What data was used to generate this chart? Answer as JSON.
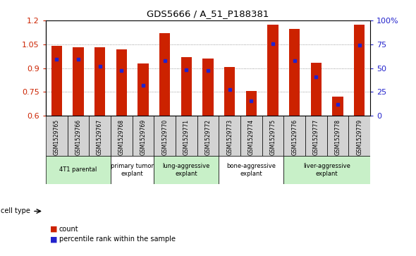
{
  "title": "GDS5666 / A_51_P188381",
  "samples": [
    "GSM1529765",
    "GSM1529766",
    "GSM1529767",
    "GSM1529768",
    "GSM1529769",
    "GSM1529770",
    "GSM1529771",
    "GSM1529772",
    "GSM1529773",
    "GSM1529774",
    "GSM1529775",
    "GSM1529776",
    "GSM1529777",
    "GSM1529778",
    "GSM1529779"
  ],
  "counts": [
    1.04,
    1.03,
    1.03,
    1.02,
    0.93,
    1.12,
    0.97,
    0.96,
    0.905,
    0.755,
    1.175,
    1.145,
    0.935,
    0.72,
    1.175
  ],
  "percentiles": [
    0.955,
    0.955,
    0.91,
    0.885,
    0.79,
    0.945,
    0.89,
    0.885,
    0.765,
    0.695,
    1.055,
    0.945,
    0.845,
    0.67,
    1.045
  ],
  "ylim": [
    0.6,
    1.2
  ],
  "yticks": [
    0.6,
    0.75,
    0.9,
    1.05,
    1.2
  ],
  "right_yticks": [
    0,
    25,
    50,
    75,
    100
  ],
  "right_yticklabels": [
    "0",
    "25",
    "50",
    "75",
    "100%"
  ],
  "bar_color": "#cc2200",
  "marker_color": "#2222cc",
  "bar_width": 0.5,
  "cell_types": [
    {
      "label": "4T1 parental",
      "start": 0,
      "end": 2,
      "color": "#c8f0c8"
    },
    {
      "label": "primary tumor\nexplant",
      "start": 3,
      "end": 4,
      "color": "#ffffff"
    },
    {
      "label": "lung-aggressive\nexplant",
      "start": 5,
      "end": 7,
      "color": "#c8f0c8"
    },
    {
      "label": "bone-aggressive\nexplant",
      "start": 8,
      "end": 10,
      "color": "#ffffff"
    },
    {
      "label": "liver-aggressive\nexplant",
      "start": 11,
      "end": 14,
      "color": "#c8f0c8"
    }
  ],
  "legend_count_label": "count",
  "legend_pct_label": "percentile rank within the sample",
  "cell_type_label": "cell type",
  "bg_table": "#d3d3d3"
}
